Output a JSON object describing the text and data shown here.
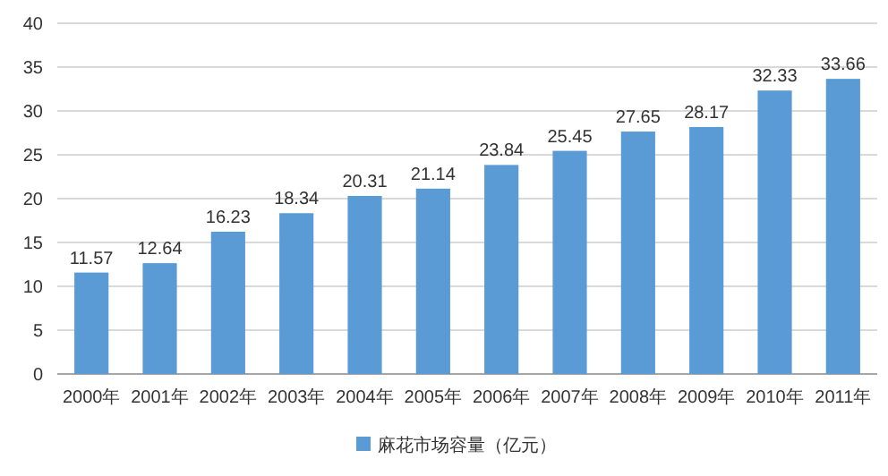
{
  "chart_data": {
    "type": "bar",
    "categories": [
      "2000年",
      "2001年",
      "2002年",
      "2003年",
      "2004年",
      "2005年",
      "2006年",
      "2007年",
      "2008年",
      "2009年",
      "2010年",
      "2011年"
    ],
    "series": [
      {
        "name": "麻花市场容量（亿元）",
        "color": "#5b9bd5",
        "values": [
          11.57,
          12.64,
          16.23,
          18.34,
          20.31,
          21.14,
          23.84,
          25.45,
          27.65,
          28.17,
          32.33,
          33.66
        ]
      }
    ],
    "ylim": [
      0,
      40
    ],
    "yticks": [
      0,
      5,
      10,
      15,
      20,
      25,
      30,
      35,
      40
    ],
    "grid": "y",
    "legend": "bottom",
    "data_labels": true
  }
}
